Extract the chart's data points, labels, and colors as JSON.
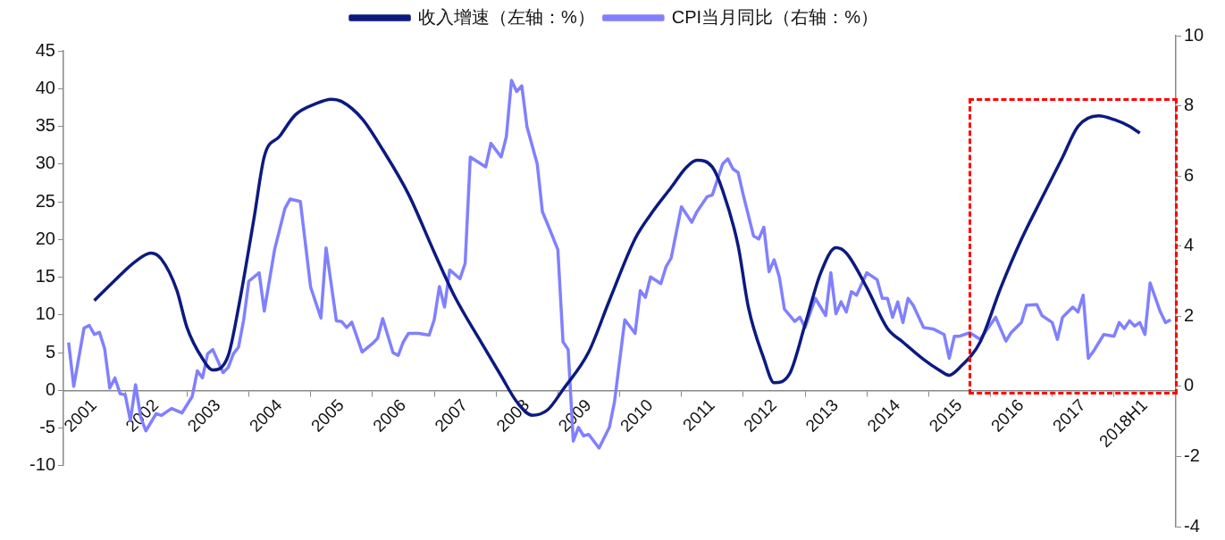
{
  "chart_data": {
    "type": "line",
    "legend": "top",
    "grid": false,
    "xlim": [
      "2001-01",
      "2019-01"
    ],
    "xticks": [
      {
        "value": "2001-07",
        "label": "2001"
      },
      {
        "value": "2002-01",
        "label": null
      },
      {
        "value": "2002-07",
        "label": "2002"
      },
      {
        "value": "2003-01",
        "label": null
      },
      {
        "value": "2003-07",
        "label": "2003"
      },
      {
        "value": "2004-01",
        "label": null
      },
      {
        "value": "2004-07",
        "label": "2004"
      },
      {
        "value": "2005-01",
        "label": null
      },
      {
        "value": "2005-07",
        "label": "2005"
      },
      {
        "value": "2006-01",
        "label": null
      },
      {
        "value": "2006-07",
        "label": "2006"
      },
      {
        "value": "2007-01",
        "label": null
      },
      {
        "value": "2007-07",
        "label": "2007"
      },
      {
        "value": "2008-01",
        "label": null
      },
      {
        "value": "2008-07",
        "label": "2008"
      },
      {
        "value": "2009-01",
        "label": null
      },
      {
        "value": "2009-07",
        "label": "2009"
      },
      {
        "value": "2010-01",
        "label": null
      },
      {
        "value": "2010-07",
        "label": "2010"
      },
      {
        "value": "2011-01",
        "label": null
      },
      {
        "value": "2011-07",
        "label": "2011"
      },
      {
        "value": "2012-01",
        "label": null
      },
      {
        "value": "2012-07",
        "label": "2012"
      },
      {
        "value": "2013-01",
        "label": null
      },
      {
        "value": "2013-07",
        "label": "2013"
      },
      {
        "value": "2014-01",
        "label": null
      },
      {
        "value": "2014-07",
        "label": "2014"
      },
      {
        "value": "2015-01",
        "label": null
      },
      {
        "value": "2015-07",
        "label": "2015"
      },
      {
        "value": "2016-01",
        "label": null
      },
      {
        "value": "2016-07",
        "label": "2016"
      },
      {
        "value": "2017-01",
        "label": null
      },
      {
        "value": "2017-07",
        "label": "2017"
      },
      {
        "value": "2018-01",
        "label": null
      },
      {
        "value": "2018-07",
        "label": "2018H1"
      }
    ],
    "ylim": [
      -10,
      45
    ],
    "yticks": [
      -10,
      -5,
      0,
      5,
      10,
      15,
      20,
      25,
      30,
      35,
      40,
      45
    ],
    "y2lim": [
      -4,
      10
    ],
    "y2ticks": [
      -4,
      -2,
      0,
      2,
      4,
      6,
      8,
      10
    ],
    "series": [
      {
        "name": "收入增速（左轴：%）",
        "color": "#0c1a80",
        "x": [
          "2001-07",
          "2001-11",
          "2002-03",
          "2002-06",
          "2002-08",
          "2002-11",
          "2003-01",
          "2003-04",
          "2003-06",
          "2003-09",
          "2003-11",
          "2004-02",
          "2004-04",
          "2004-07",
          "2004-10",
          "2005-02",
          "2005-05",
          "2005-07",
          "2005-11",
          "2006-03",
          "2006-08",
          "2007-01",
          "2007-05",
          "2007-10",
          "2008-02",
          "2008-05",
          "2008-08",
          "2008-11",
          "2009-02",
          "2009-07",
          "2009-11",
          "2010-04",
          "2010-07",
          "2010-11",
          "2011-02",
          "2011-04",
          "2011-07",
          "2011-09",
          "2011-12",
          "2012-02",
          "2012-05",
          "2012-07",
          "2012-10",
          "2013-01",
          "2013-04",
          "2013-07",
          "2013-09",
          "2014-01",
          "2014-05",
          "2014-08",
          "2014-12",
          "2015-03",
          "2015-05",
          "2015-07",
          "2015-11",
          "2016-03",
          "2016-07",
          "2016-11",
          "2017-03",
          "2017-06",
          "2017-10",
          "2018-01",
          "2018-04",
          "2018-06"
        ],
        "values": [
          11.9,
          14.6,
          17.1,
          18.2,
          17.4,
          13.3,
          8.3,
          4.2,
          2.7,
          4.6,
          11.0,
          22.8,
          31.0,
          33.7,
          36.5,
          38.0,
          38.6,
          38.3,
          36.0,
          31.9,
          26.0,
          18.3,
          12.4,
          6.5,
          1.9,
          -1.5,
          -3.3,
          -2.6,
          0.1,
          5.1,
          11.9,
          20.1,
          23.3,
          26.9,
          29.6,
          30.5,
          29.6,
          26.5,
          19.2,
          11.0,
          4.2,
          1.0,
          2.2,
          8.7,
          15.5,
          18.9,
          18.2,
          13.6,
          8.2,
          6.4,
          4.1,
          2.7,
          2.0,
          3.0,
          6.4,
          13.6,
          20.0,
          25.5,
          30.9,
          35.0,
          36.4,
          35.9,
          35.0,
          34.1
        ]
      },
      {
        "name": "CPI当月同比（右轴：%）",
        "color": "#8080ff",
        "axis": "y2",
        "x": [
          "2001-02",
          "2001-03",
          "2001-05",
          "2001-06",
          "2001-07",
          "2001-08",
          "2001-09",
          "2001-10",
          "2001-11",
          "2001-12",
          "2002-01",
          "2002-02",
          "2002-03",
          "2002-04",
          "2002-05",
          "2002-07",
          "2002-08",
          "2002-10",
          "2002-12",
          "2003-02",
          "2003-03",
          "2003-04",
          "2003-05",
          "2003-06",
          "2003-08",
          "2003-09",
          "2003-10",
          "2003-11",
          "2003-12",
          "2004-01",
          "2004-03",
          "2004-04",
          "2004-06",
          "2004-08",
          "2004-09",
          "2004-11",
          "2005-01",
          "2005-03",
          "2005-04",
          "2005-06",
          "2005-07",
          "2005-08",
          "2005-09",
          "2005-11",
          "2006-01",
          "2006-02",
          "2006-03",
          "2006-05",
          "2006-06",
          "2006-07",
          "2006-08",
          "2006-10",
          "2006-12",
          "2007-01",
          "2007-02",
          "2007-03",
          "2007-04",
          "2007-06",
          "2007-07",
          "2007-08",
          "2007-11",
          "2007-12",
          "2008-02",
          "2008-03",
          "2008-04",
          "2008-05",
          "2008-06",
          "2008-07",
          "2008-09",
          "2008-10",
          "2008-11",
          "2009-01",
          "2009-02",
          "2009-03",
          "2009-04",
          "2009-05",
          "2009-06",
          "2009-07",
          "2009-09",
          "2009-11",
          "2009-12",
          "2010-02",
          "2010-04",
          "2010-05",
          "2010-06",
          "2010-07",
          "2010-09",
          "2010-10",
          "2010-11",
          "2011-01",
          "2011-03",
          "2011-04",
          "2011-06",
          "2011-07",
          "2011-09",
          "2011-10",
          "2011-11",
          "2011-12",
          "2012-01",
          "2012-03",
          "2012-04",
          "2012-05",
          "2012-06",
          "2012-07",
          "2012-08",
          "2012-09",
          "2012-11",
          "2012-12",
          "2013-01",
          "2013-03",
          "2013-05",
          "2013-06",
          "2013-07",
          "2013-08",
          "2013-09",
          "2013-10",
          "2013-11",
          "2014-01",
          "2014-03",
          "2014-04",
          "2014-05",
          "2014-06",
          "2014-07",
          "2014-08",
          "2014-09",
          "2014-10",
          "2014-12",
          "2015-02",
          "2015-04",
          "2015-05",
          "2015-06",
          "2015-07",
          "2015-09",
          "2015-11",
          "2016-02",
          "2016-04",
          "2016-05",
          "2016-07",
          "2016-08",
          "2016-10",
          "2016-11",
          "2017-01",
          "2017-02",
          "2017-03",
          "2017-05",
          "2017-06",
          "2017-07",
          "2017-08",
          "2017-09",
          "2017-11",
          "2018-01",
          "2018-02",
          "2018-03",
          "2018-04",
          "2018-05",
          "2018-06",
          "2018-07",
          "2018-08",
          "2018-10",
          "2018-11",
          "2018-12"
        ],
        "values": [
          1.25,
          0,
          1.66,
          1.74,
          1.48,
          1.54,
          1.07,
          -0.05,
          0.24,
          -0.21,
          -0.24,
          -0.98,
          0.05,
          -0.88,
          -1.27,
          -0.78,
          -0.83,
          -0.63,
          -0.76,
          -0.29,
          0.44,
          0.24,
          0.93,
          1.05,
          0.39,
          0.54,
          0.93,
          1.12,
          1.9,
          3.0,
          3.24,
          2.15,
          3.9,
          5.07,
          5.34,
          5.27,
          2.83,
          1.95,
          3.95,
          1.87,
          1.85,
          1.68,
          1.83,
          0.98,
          1.22,
          1.37,
          1.93,
          0.96,
          0.88,
          1.27,
          1.51,
          1.51,
          1.46,
          1.9,
          2.85,
          2.26,
          3.32,
          3.07,
          3.51,
          6.54,
          6.26,
          6.93,
          6.54,
          7.12,
          8.73,
          8.41,
          8.57,
          7.41,
          6.34,
          4.98,
          4.63,
          3.9,
          1.27,
          1.05,
          -1.56,
          -1.17,
          -1.41,
          -1.37,
          -1.76,
          -1.17,
          -0.44,
          1.9,
          1.51,
          2.73,
          2.54,
          3.12,
          2.93,
          3.41,
          3.66,
          5.12,
          4.68,
          4.98,
          5.41,
          5.46,
          6.34,
          6.49,
          6.2,
          6.1,
          5.46,
          4.29,
          4.2,
          4.54,
          3.27,
          3.61,
          3.12,
          2.2,
          1.85,
          1.97,
          1.68,
          2.51,
          2.02,
          3.24,
          2.07,
          2.41,
          2.12,
          2.7,
          2.6,
          3.24,
          3.04,
          2.51,
          2.51,
          1.97,
          2.41,
          1.82,
          2.51,
          2.31,
          1.68,
          1.63,
          1.48,
          0.8,
          1.43,
          1.43,
          1.53,
          1.34,
          1.97,
          1.29,
          1.53,
          1.82,
          2.31,
          2.33,
          2.02,
          1.82,
          1.34,
          1.97,
          2.26,
          2.12,
          2.6,
          0.8,
          1.0,
          1.48,
          1.43,
          1.82,
          1.65,
          1.87,
          1.72,
          1.82,
          1.48,
          2.95,
          2.12,
          1.82,
          1.9
        ]
      }
    ]
  }
}
